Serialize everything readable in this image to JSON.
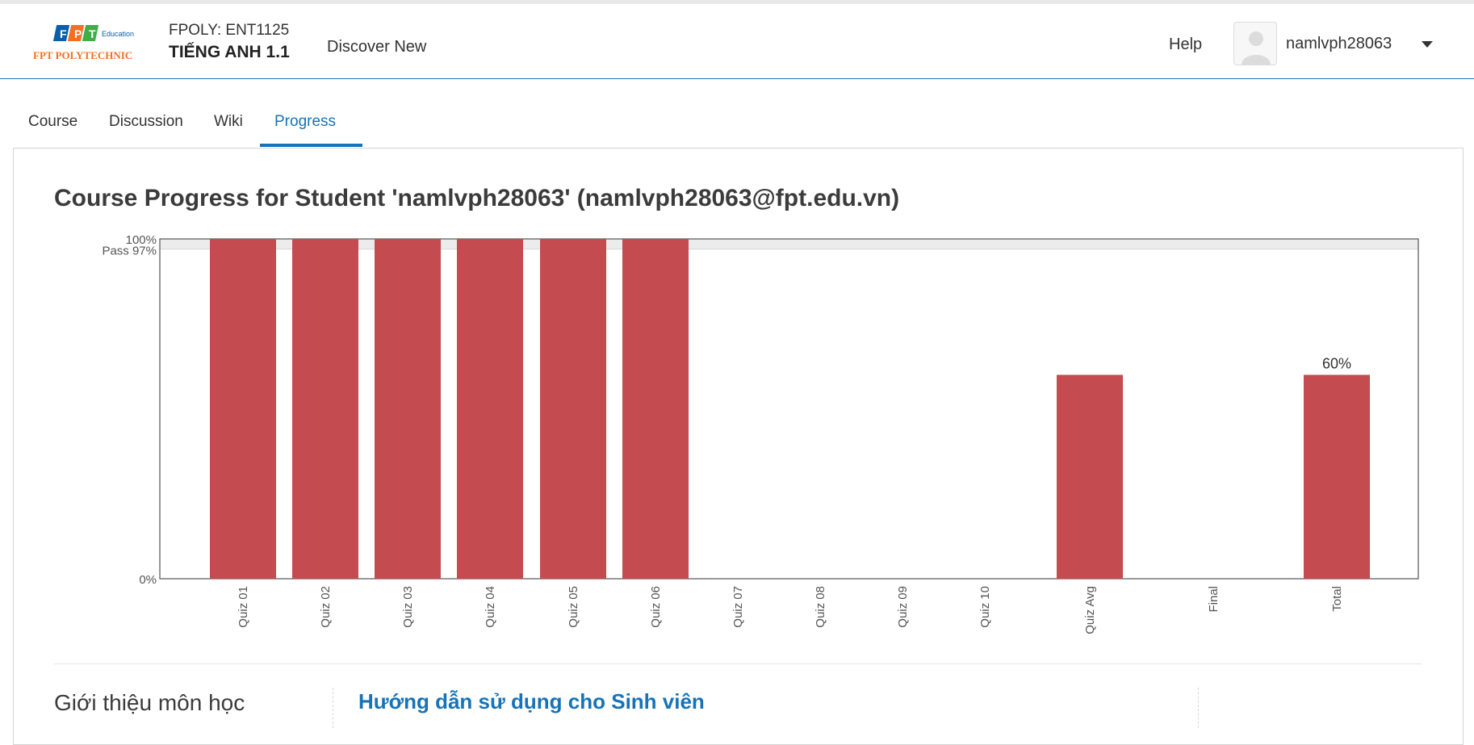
{
  "header": {
    "logo_text": "FPT POLYTECHNIC",
    "logo_sub": "Education",
    "course_org": "FPOLY: ENT1125",
    "course_name": "TIẾNG ANH 1.1",
    "discover": "Discover New",
    "help": "Help",
    "username": "namlvph28063"
  },
  "tabs": [
    {
      "label": "Course"
    },
    {
      "label": "Discussion"
    },
    {
      "label": "Wiki"
    },
    {
      "label": "Progress",
      "active": true
    }
  ],
  "main": {
    "title": "Course Progress for Student 'namlvph28063' (namlvph28063@fpt.edu.vn)"
  },
  "chart_data": {
    "type": "bar",
    "categories": [
      "Quiz 01",
      "Quiz 02",
      "Quiz 03",
      "Quiz 04",
      "Quiz 05",
      "Quiz 06",
      "Quiz 07",
      "Quiz 08",
      "Quiz 09",
      "Quiz 10",
      "Quiz Avg",
      "Final",
      "Total"
    ],
    "values": [
      100,
      100,
      100,
      100,
      100,
      100,
      0,
      0,
      0,
      0,
      60,
      0,
      60
    ],
    "ylim": [
      0,
      100
    ],
    "y_ticks": [
      {
        "label": "0%",
        "value": 0
      },
      {
        "label": "100%",
        "value": 100
      }
    ],
    "pass_label": "Pass 97%",
    "pass_value": 97,
    "data_labels": [
      {
        "category": "Total",
        "label": "60%"
      }
    ],
    "bar_color": "#c44b4f"
  },
  "footer": {
    "intro": "Giới thiệu môn học",
    "guide": "Hướng dẫn sử dụng cho Sinh viên"
  },
  "colors": {
    "accent": "#1673b8",
    "brand_orange": "#f37021",
    "brand_blue": "#0a5eaa",
    "brand_green": "#3fae49"
  }
}
